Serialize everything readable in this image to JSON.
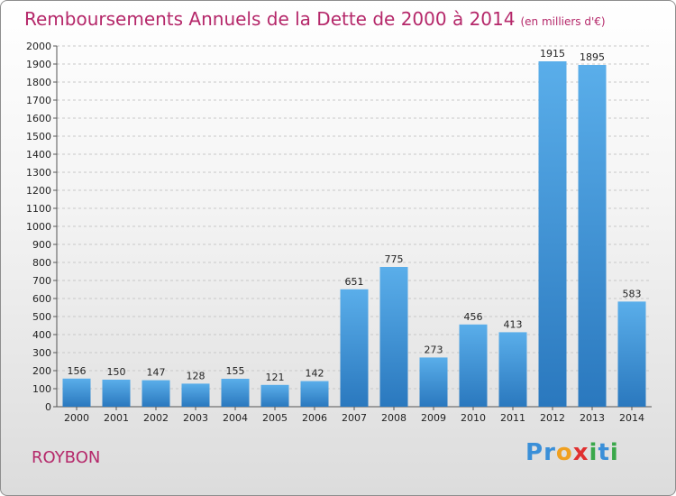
{
  "title": "Remboursements Annuels de la Dette de 2000 à 2014",
  "unit": "(en milliers d'€)",
  "commune": "ROYBON",
  "logo": {
    "letters": [
      {
        "char": "P",
        "color": "#3a8fd8"
      },
      {
        "char": "r",
        "color": "#3a8fd8"
      },
      {
        "char": "o",
        "color": "#f0a020"
      },
      {
        "char": "x",
        "color": "#e03030"
      },
      {
        "char": "i",
        "color": "#3aa84a"
      },
      {
        "char": "t",
        "color": "#3a8fd8"
      },
      {
        "char": "i",
        "color": "#3aa84a"
      }
    ]
  },
  "chart_data": {
    "type": "bar",
    "title": "Remboursements Annuels de la Dette de 2000 à 2014",
    "xlabel": "",
    "ylabel": "",
    "categories": [
      "2000",
      "2001",
      "2002",
      "2003",
      "2004",
      "2005",
      "2006",
      "2007",
      "2008",
      "2009",
      "2010",
      "2011",
      "2012",
      "2013",
      "2014"
    ],
    "values": [
      156,
      150,
      147,
      128,
      155,
      121,
      142,
      651,
      775,
      273,
      456,
      413,
      1915,
      1895,
      583
    ],
    "ylim": [
      0,
      2000
    ],
    "yticks": [
      0,
      100,
      200,
      300,
      400,
      500,
      600,
      700,
      800,
      900,
      1000,
      1100,
      1200,
      1300,
      1400,
      1500,
      1600,
      1700,
      1800,
      1900,
      2000
    ],
    "grid": true,
    "bar_color": "#4a9be0"
  }
}
